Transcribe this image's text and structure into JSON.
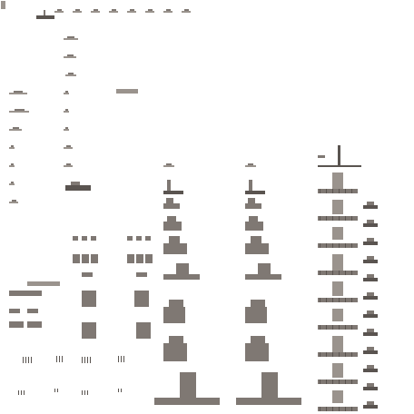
{
  "sheet": {
    "background": "#ffffff",
    "primary_color": "#7f7873",
    "dark_color": "#5a5450",
    "light_color": "#9a938d",
    "icon": "stone-tile-sprites"
  }
}
